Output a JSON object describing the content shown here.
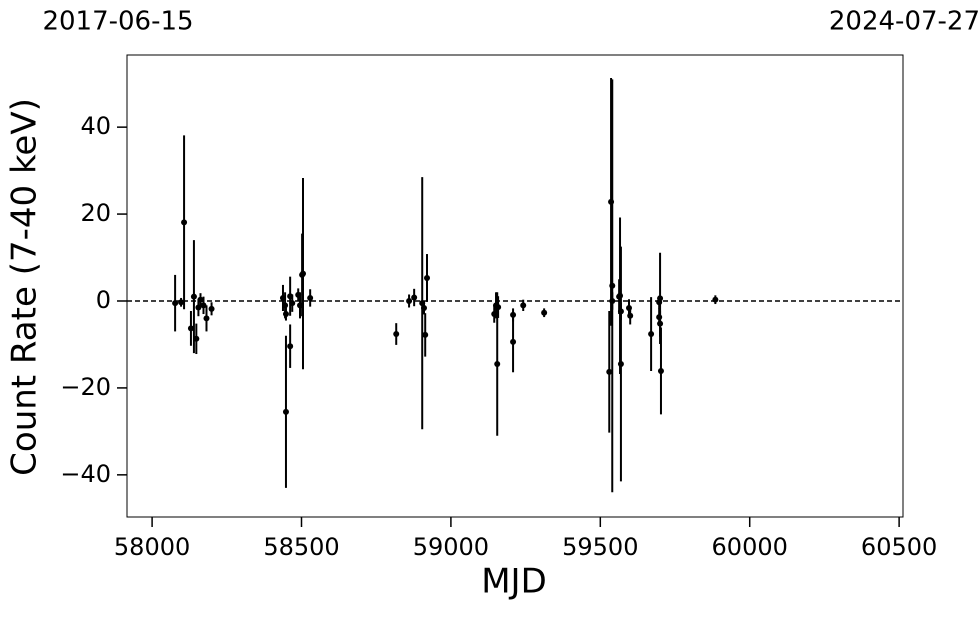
{
  "chart_data": {
    "type": "errorbar",
    "xlabel": "MJD",
    "ylabel": "Count Rate (7-40 keV)",
    "annotations": [
      "2017-06-15",
      "2024-07-27"
    ],
    "xlim": [
      57916,
      60513
    ],
    "ylim": [
      -49.7,
      56.6
    ],
    "xticks": [
      58000,
      58500,
      59000,
      59500,
      60000,
      60500
    ],
    "yticks": [
      {
        "value": -40,
        "label": "−40"
      },
      {
        "value": -20,
        "label": "−20"
      },
      0,
      20,
      40
    ],
    "hline": 0,
    "series": [
      {
        "color": "#000000",
        "x": [
          58077,
          58097,
          58107,
          58130,
          58140,
          58148,
          58155,
          58162,
          58172,
          58182,
          58199,
          58438,
          58445,
          58448,
          58448,
          58462,
          58462,
          58469,
          58489,
          58495,
          58502,
          58505,
          58529,
          58817,
          58860,
          58877,
          58904,
          58910,
          58914,
          58920,
          59145,
          59151,
          59155,
          59158,
          59208,
          59208,
          59242,
          59312,
          59530,
          59536,
          59540,
          59540,
          59563,
          59566,
          59569,
          59569,
          59596,
          59600,
          59670,
          59697,
          59697,
          59700,
          59703,
          59700,
          59885
        ],
        "values": [
          -0.5,
          -0.3,
          18.1,
          -6.3,
          1,
          -8.7,
          -1.5,
          0.3,
          -1,
          -4,
          -1.8,
          0.7,
          -1,
          -3,
          -25.5,
          1.1,
          -10.4,
          -0.5,
          1.4,
          -1,
          6,
          6.3,
          0.7,
          -7.6,
          0,
          0.8,
          -0.5,
          -1.6,
          -7.8,
          5.3,
          -3,
          -1,
          -14.5,
          -1.4,
          -9.4,
          -3.2,
          -1,
          -2.7,
          -16.3,
          22.8,
          3.5,
          0,
          1,
          1.2,
          -14.5,
          -2.4,
          -1.6,
          -3.4,
          -7.6,
          -0.3,
          -3.7,
          -5.2,
          -16.1,
          0.6,
          0.3
        ],
        "yerr": [
          6.5,
          1,
          20,
          4,
          13,
          3.5,
          2,
          1.5,
          2,
          3,
          1.5,
          3,
          3,
          1.5,
          17.5,
          4.5,
          5,
          2,
          1.5,
          3,
          9.5,
          22,
          2,
          2.5,
          1.5,
          2,
          29,
          1.5,
          5,
          5.5,
          2,
          3,
          16.5,
          2.5,
          7,
          1.5,
          1.3,
          1,
          14,
          28.5,
          47.5,
          2,
          4,
          18,
          27,
          2,
          2,
          2,
          8.5,
          1.5,
          2,
          3,
          10,
          10.5,
          1
        ]
      }
    ]
  }
}
